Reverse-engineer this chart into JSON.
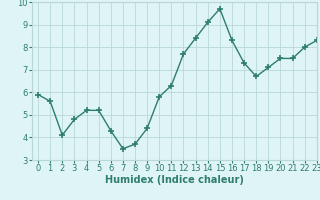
{
  "x": [
    0,
    1,
    2,
    3,
    4,
    5,
    6,
    7,
    8,
    9,
    10,
    11,
    12,
    13,
    14,
    15,
    16,
    17,
    18,
    19,
    20,
    21,
    22,
    23
  ],
  "y": [
    5.9,
    5.6,
    4.1,
    4.8,
    5.2,
    5.2,
    4.3,
    3.5,
    3.7,
    4.4,
    5.8,
    6.3,
    7.7,
    8.4,
    9.1,
    9.7,
    8.3,
    7.3,
    6.7,
    7.1,
    7.5,
    7.5,
    8.0,
    8.3
  ],
  "xlabel": "Humidex (Indice chaleur)",
  "ylim": [
    3,
    10
  ],
  "xlim": [
    -0.5,
    23
  ],
  "yticks": [
    3,
    4,
    5,
    6,
    7,
    8,
    9,
    10
  ],
  "xticks": [
    0,
    1,
    2,
    3,
    4,
    5,
    6,
    7,
    8,
    9,
    10,
    11,
    12,
    13,
    14,
    15,
    16,
    17,
    18,
    19,
    20,
    21,
    22,
    23
  ],
  "line_color": "#2e7d6e",
  "marker": "+",
  "marker_size": 4,
  "bg_color": "#dff4f4",
  "grid_color": "#b8d8d8",
  "xlabel_fontsize": 7,
  "tick_fontsize": 6,
  "line_width": 1.0
}
